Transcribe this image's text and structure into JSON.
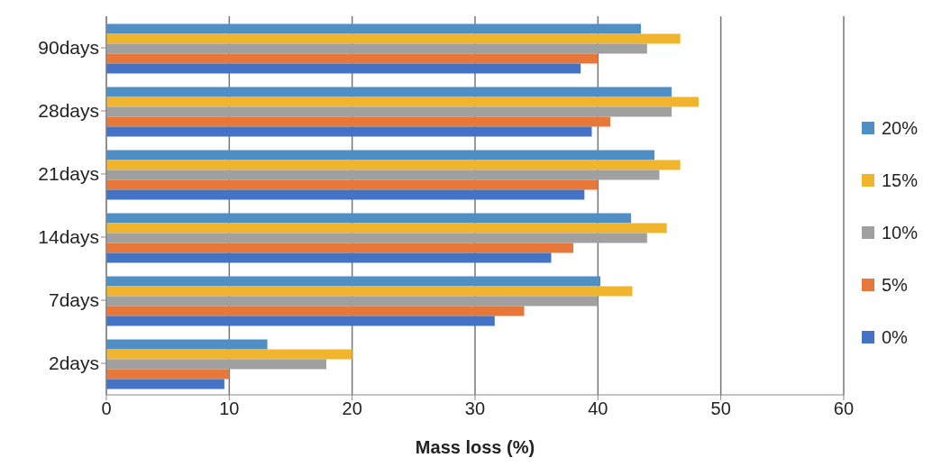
{
  "chart_data": {
    "type": "bar",
    "orientation": "horizontal",
    "xlabel": "Mass loss (%)",
    "categories": [
      "90days",
      "28days",
      "21days",
      "14days",
      "7days",
      "2days"
    ],
    "series": [
      {
        "name": "20%",
        "color": "#4f8fc6",
        "values": [
          43.5,
          46,
          44.6,
          42.7,
          40.2,
          13.1
        ]
      },
      {
        "name": "15%",
        "color": "#f0b52c",
        "values": [
          46.7,
          48.2,
          46.7,
          45.6,
          42.8,
          20
        ]
      },
      {
        "name": "10%",
        "color": "#a0a0a0",
        "values": [
          44,
          46,
          45,
          44,
          40,
          17.9
        ]
      },
      {
        "name": "5%",
        "color": "#e8773a",
        "values": [
          40,
          41,
          40,
          38,
          34,
          10
        ]
      },
      {
        "name": "0%",
        "color": "#4472c4",
        "values": [
          38.6,
          39.5,
          38.9,
          36.2,
          31.6,
          9.6
        ]
      }
    ],
    "xlim": [
      0,
      60
    ],
    "xticks": [
      0,
      10,
      20,
      30,
      40,
      50,
      60
    ],
    "grid": "x",
    "legend": "right"
  }
}
